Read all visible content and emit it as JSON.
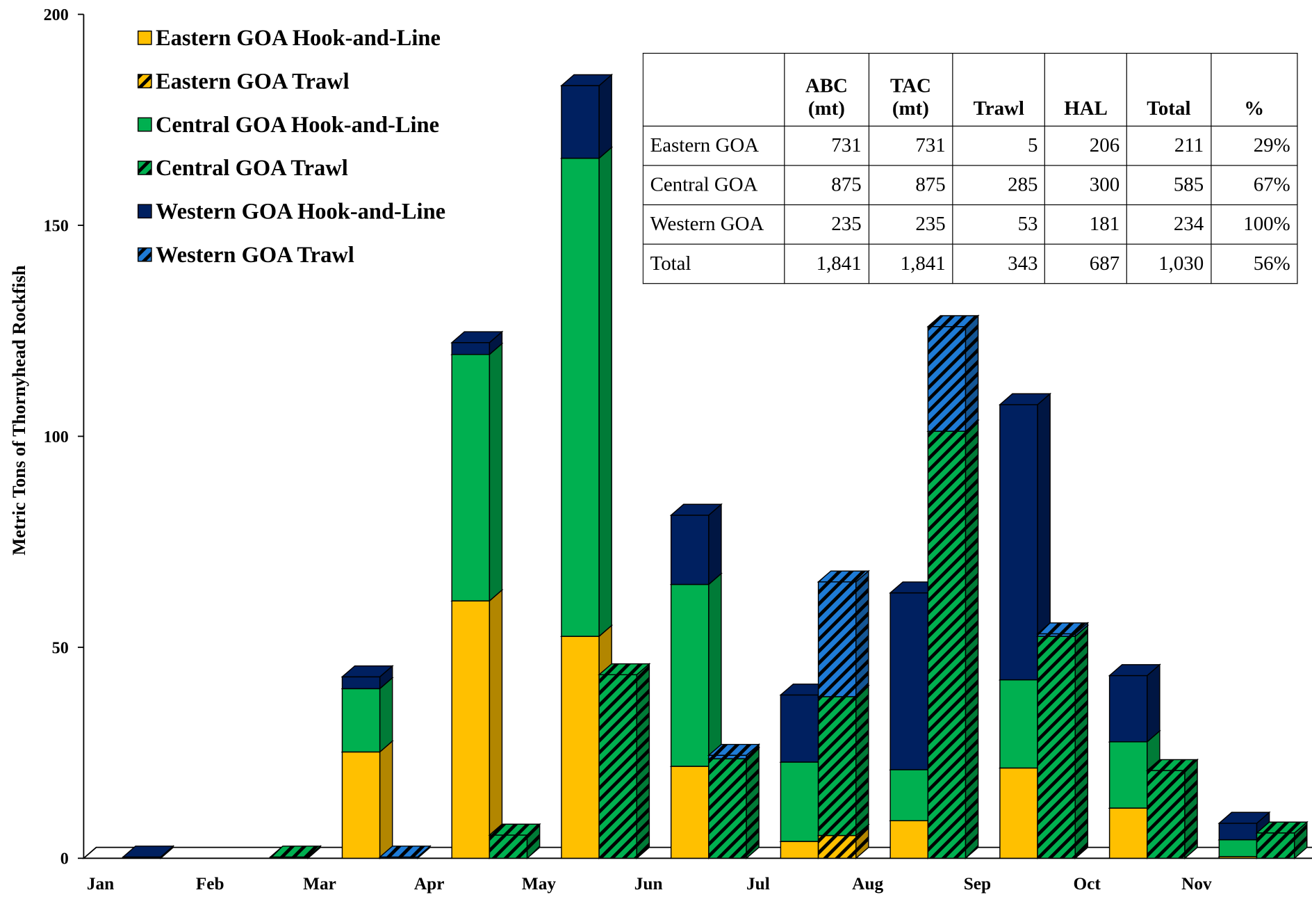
{
  "chart_data": {
    "type": "bar3d",
    "y_label": "Metric Tons of Thornyhead Rockfish",
    "categories": [
      "Jan",
      "Feb",
      "Mar",
      "Apr",
      "May",
      "Jun",
      "Jul",
      "Aug",
      "Sep",
      "Oct",
      "Nov"
    ],
    "ylim": [
      0,
      200
    ],
    "yticks": [
      0,
      50,
      100,
      150,
      200
    ],
    "series": [
      {
        "name": "Eastern GOA Hook-and-Line",
        "color": "#ffc000",
        "stack": "left",
        "hatched": false,
        "values": [
          0,
          0,
          25.2,
          61,
          52.6,
          21.8,
          4,
          8.9,
          21.4,
          11.9,
          0.4
        ]
      },
      {
        "name": "Eastern GOA Trawl",
        "color": "#ffc000",
        "stack": "right",
        "hatched": true,
        "values": [
          0,
          0,
          0,
          0,
          0,
          0,
          5.4,
          0,
          0,
          0,
          0
        ]
      },
      {
        "name": "Central GOA Hook-and-Line",
        "color": "#00b050",
        "stack": "left",
        "hatched": false,
        "values": [
          0,
          0,
          15,
          58.4,
          113.3,
          43.1,
          18.8,
          12.1,
          20.9,
          15.7,
          4
        ]
      },
      {
        "name": "Central GOA Trawl",
        "color": "#00b050",
        "stack": "right",
        "hatched": true,
        "values": [
          0,
          0.3,
          0,
          5.5,
          43.5,
          23.6,
          32.9,
          101.2,
          52.6,
          20.8,
          6
        ]
      },
      {
        "name": "Western GOA Hook-and-Line",
        "color": "#002060",
        "stack": "left",
        "hatched": false,
        "values": [
          0.3,
          0,
          2.8,
          2.8,
          17.2,
          16.4,
          15.9,
          41.9,
          65.2,
          15.7,
          3.9
        ]
      },
      {
        "name": "Western GOA Trawl",
        "color": "#1e7bd6",
        "stack": "right",
        "hatched": true,
        "values": [
          0,
          0,
          0.3,
          0,
          0,
          0.8,
          27.2,
          24.8,
          0.6,
          0,
          0
        ]
      }
    ],
    "table": {
      "header": [
        [
          "ABC",
          "(mt)"
        ],
        [
          "TAC",
          "(mt)"
        ],
        [
          "Trawl"
        ],
        [
          "HAL"
        ],
        [
          "Total"
        ],
        [
          "%"
        ]
      ],
      "rows": [
        [
          "Eastern GOA",
          "731",
          "731",
          "5",
          "206",
          "211",
          "29%"
        ],
        [
          "Central GOA",
          "875",
          "875",
          "285",
          "300",
          "585",
          "67%"
        ],
        [
          "Western GOA",
          "235",
          "235",
          "53",
          "181",
          "234",
          "100%"
        ],
        [
          "Total",
          "1,841",
          "1,841",
          "343",
          "687",
          "1,030",
          "56%"
        ]
      ]
    }
  }
}
